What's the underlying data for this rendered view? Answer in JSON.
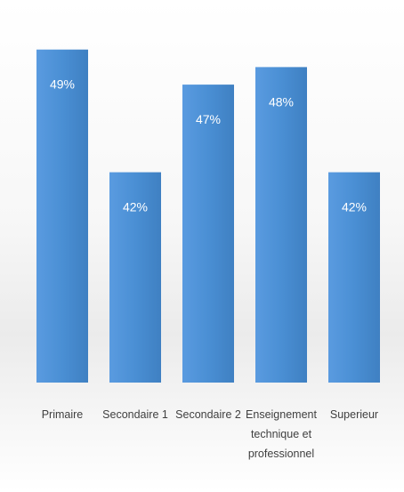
{
  "chart_data": {
    "type": "bar",
    "categories": [
      [
        "Primaire"
      ],
      [
        "Secondaire 1"
      ],
      [
        "Secondaire 2"
      ],
      [
        "Enseignement",
        "technique et",
        "professionnel"
      ],
      [
        "Superieur"
      ]
    ],
    "values": [
      49,
      42,
      47,
      48,
      42
    ],
    "value_labels": [
      "49%",
      "42%",
      "47%",
      "48%",
      "42%"
    ],
    "title": "",
    "xlabel": "",
    "ylabel": "",
    "ylim": [
      30,
      50
    ],
    "grid": false,
    "legend": "none",
    "bar_color": "#4a8fd4",
    "value_label_color": "#ffffff",
    "label_color": "#404040"
  }
}
